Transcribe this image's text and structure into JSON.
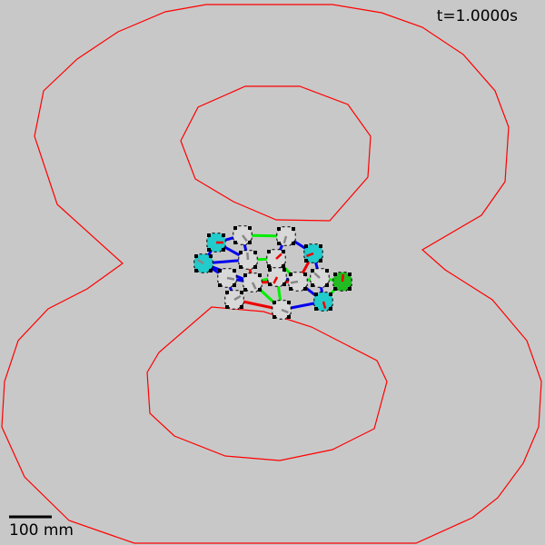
{
  "time_readout": "t=1.0000s",
  "scale_bar": {
    "label": "100 mm"
  },
  "colors": {
    "background": "#c8c8c8",
    "track": "#ff0000",
    "link_blue": "#0000ee",
    "link_green": "#00ee00",
    "link_red": "#ee0000",
    "node_gray": "#d8d8d8",
    "node_cyan": "#22cccc",
    "node_green": "#22bb22"
  },
  "track": {
    "shape": "figure-8",
    "label": "8"
  },
  "swarm": {
    "node_count": 15
  }
}
